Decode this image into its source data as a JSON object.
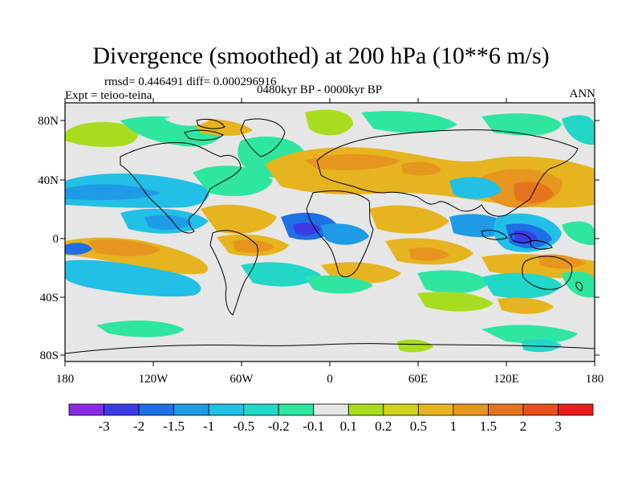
{
  "header": {
    "title": "Divergence (smoothed) at 200 hPa (10**6 m/s)",
    "stats": "rmsd= 0.446491 diff= 0.000296916",
    "experiment": "Expt = teioo-teina",
    "period": "0480kyr BP - 0000kyr BP",
    "season": "ANN"
  },
  "map": {
    "background_color": "#e6e6e6",
    "lat_ticks": [
      "80N",
      "40N",
      "0",
      "40S",
      "80S"
    ],
    "lon_ticks": [
      "180",
      "120W",
      "60W",
      "0",
      "60E",
      "120E",
      "180"
    ]
  },
  "colorbar": {
    "colors": [
      "#8a2be2",
      "#3c3ce6",
      "#1f6fe6",
      "#1e9be6",
      "#22bfe6",
      "#22d6c8",
      "#2ee6a0",
      "#e6e6e6",
      "#a8dc1e",
      "#cfd21e",
      "#e6b41e",
      "#e6961e",
      "#e6731e",
      "#e6501e",
      "#e61e1e"
    ],
    "labels": [
      "-3",
      "-2",
      "-1.5",
      "-1",
      "-0.5",
      "-0.2",
      "-0.1",
      "0.1",
      "0.2",
      "0.5",
      "1",
      "1.5",
      "2",
      "3"
    ]
  }
}
